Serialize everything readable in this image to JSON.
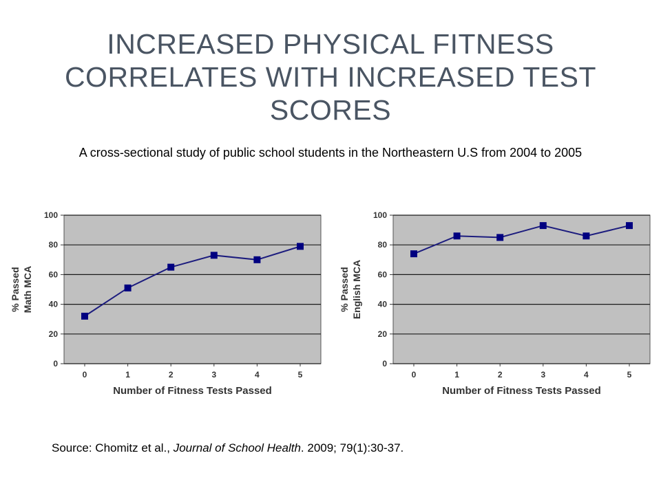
{
  "slide": {
    "title": "INCREASED PHYSICAL FITNESS CORRELATES WITH INCREASED TEST SCORES",
    "subtitle": "A cross-sectional study of public school students in the Northeastern U.S from 2004 to 2005",
    "source_prefix": "Source: Chomitz et al., ",
    "source_journal": "Journal of School Health",
    "source_suffix": ". 2009; 79(1):30-37."
  },
  "colors": {
    "plot_background": "#c0c0c0",
    "line": "#1c1c7e",
    "marker": "#000080",
    "gridline": "#1a1a1a",
    "title": "#4a5563"
  },
  "chart_data": [
    {
      "type": "line",
      "x": [
        0,
        1,
        2,
        3,
        4,
        5
      ],
      "tick_labels_x": [
        "0",
        "1",
        "2",
        "3",
        "4",
        "5"
      ],
      "tick_labels_y": [
        "0",
        "20",
        "40",
        "60",
        "80",
        "100"
      ],
      "series": [
        {
          "values": [
            32,
            51,
            65,
            73,
            70,
            79
          ]
        }
      ],
      "xlabel": "Number of Fitness Tests Passed",
      "ylabel_lines": [
        "% Passed",
        "Math MCA"
      ],
      "ylim": [
        0,
        100
      ],
      "grid": true
    },
    {
      "type": "line",
      "x": [
        0,
        1,
        2,
        3,
        4,
        5
      ],
      "tick_labels_x": [
        "0",
        "1",
        "2",
        "3",
        "4",
        "5"
      ],
      "tick_labels_y": [
        "0",
        "20",
        "40",
        "60",
        "80",
        "100"
      ],
      "series": [
        {
          "values": [
            74,
            86,
            85,
            93,
            86,
            93
          ]
        }
      ],
      "xlabel": "Number of Fitness Tests Passed",
      "ylabel_lines": [
        "% Passed",
        "English MCA"
      ],
      "ylim": [
        0,
        100
      ],
      "grid": true
    }
  ]
}
